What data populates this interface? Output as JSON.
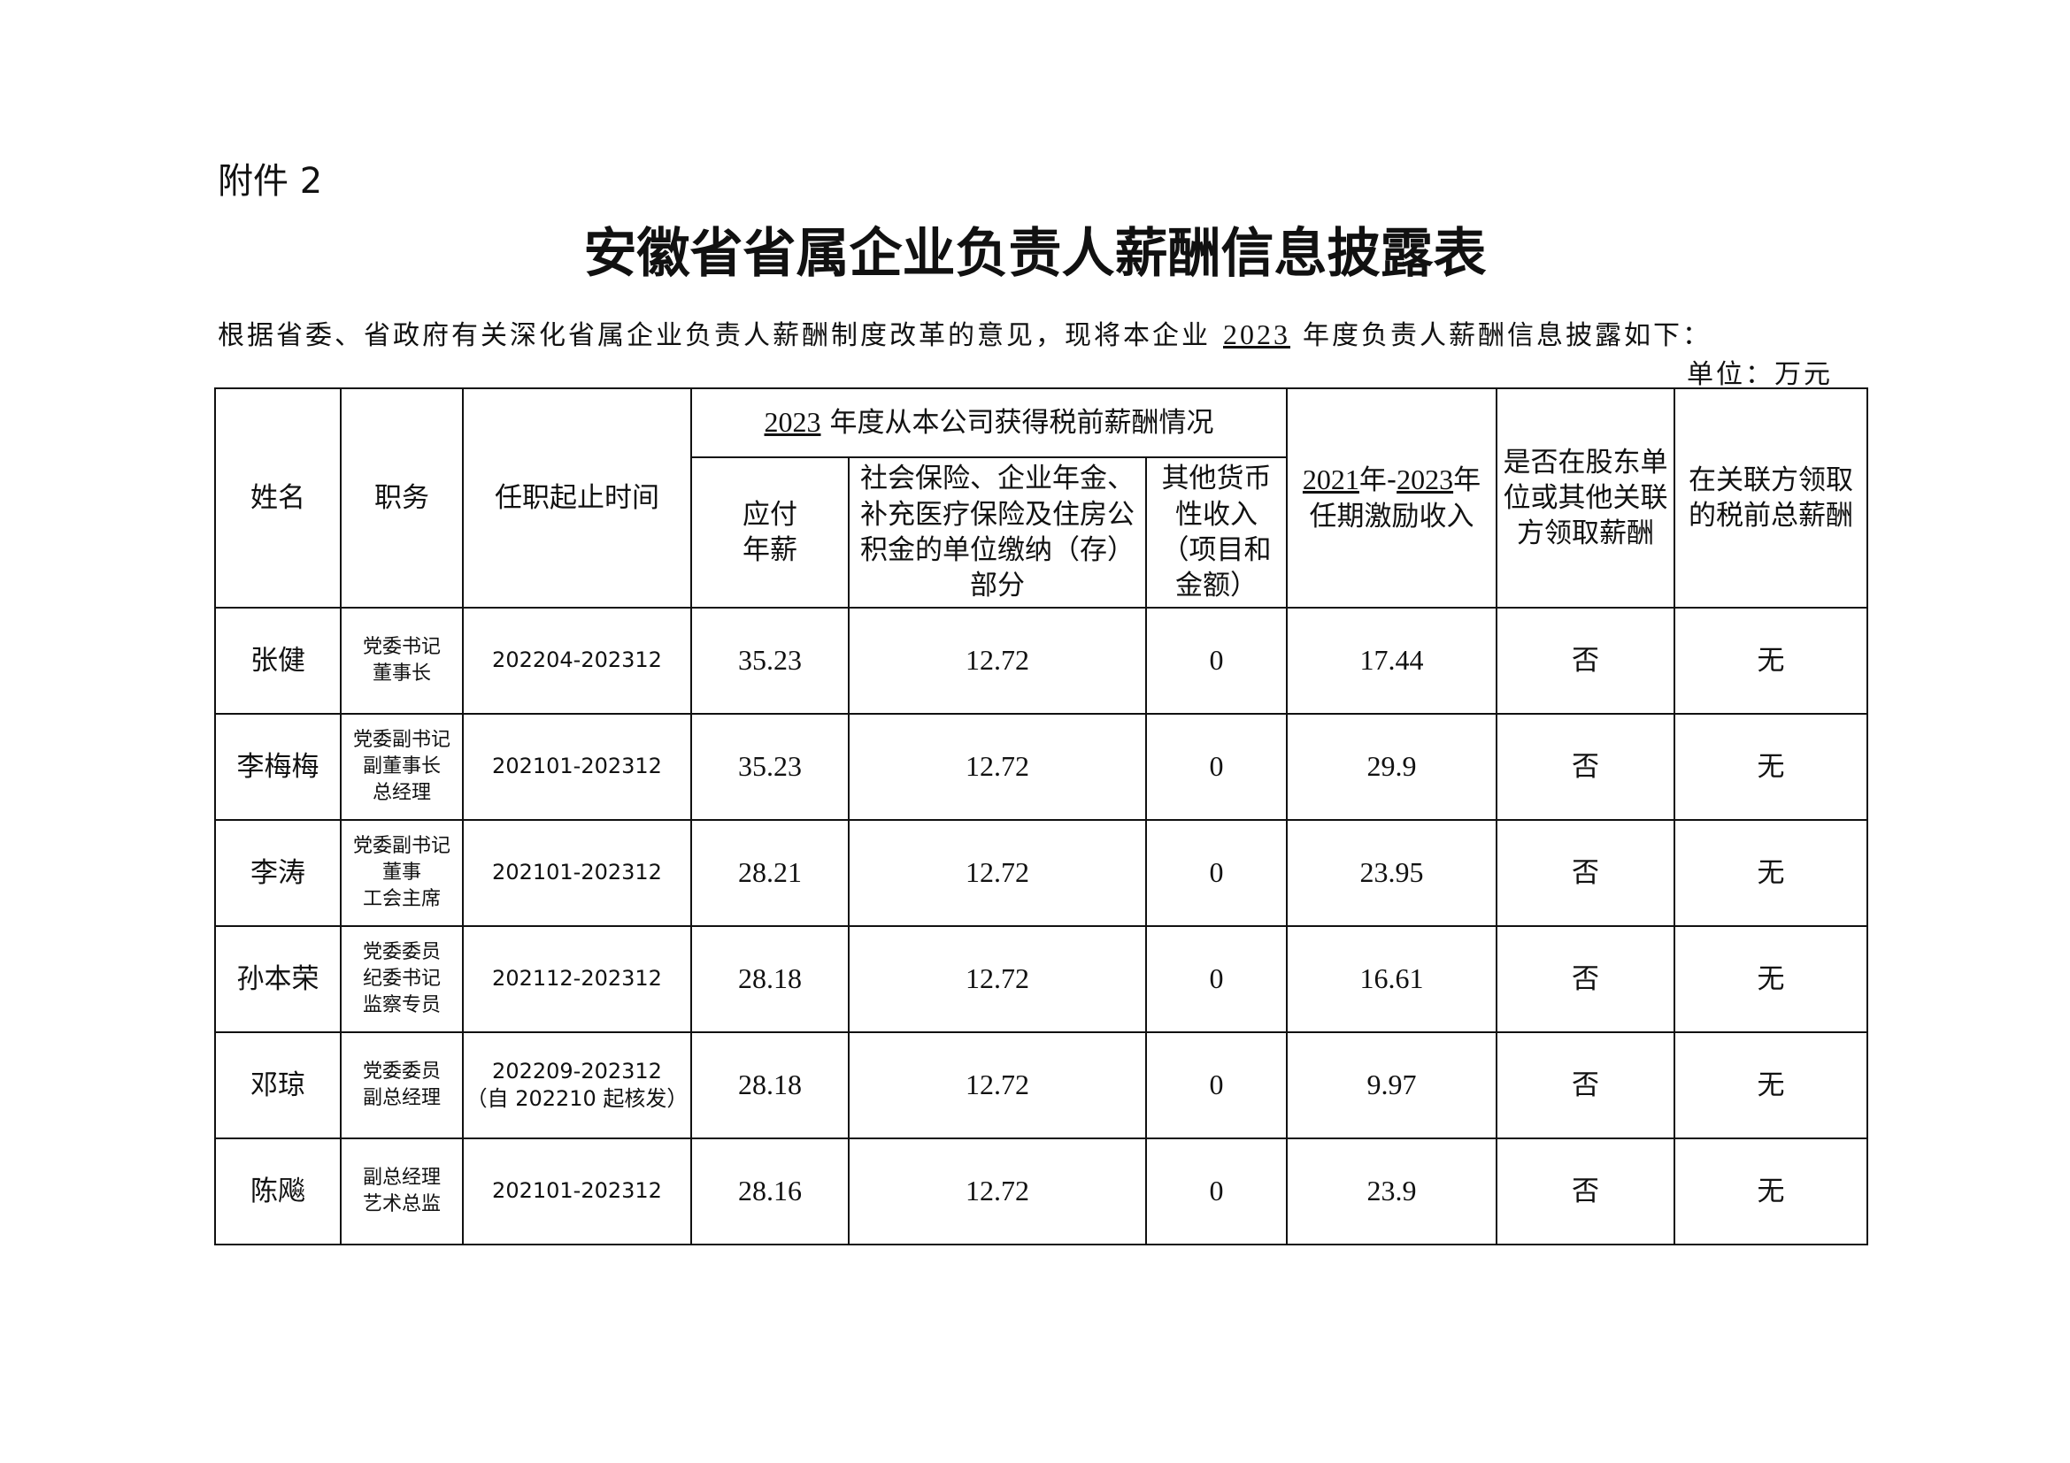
{
  "attachment": "附件 2",
  "title": "安徽省省属企业负责人薪酬信息披露表",
  "intro": {
    "before": "根据省委、省政府有关深化省属企业负责人薪酬制度改革的意见，现将本企业",
    "year": "2023",
    "after": "年度负责人薪酬信息披露如下："
  },
  "unit": "单位：万元",
  "headers": {
    "name": "姓名",
    "position": "职务",
    "term": "任职起止时间",
    "group_year": "2023",
    "group_text": "年度从本公司获得税前薪酬情况",
    "salary": "应付年薪",
    "insurance": "社会保险、企业年金、补充医疗保险及住房公积金的单位缴纳（存）部分",
    "other": "其他货币性收入（项目和金额）",
    "incentive_y1": "2021",
    "incentive_y2": "2023",
    "incentive_text": "任期激励收入",
    "shareholder": "是否在股东单位或其他关联方领取薪酬",
    "related_total": "在关联方领取的税前总薪酬"
  },
  "rows": [
    {
      "name": "张健",
      "position": [
        "党委书记",
        "董事长"
      ],
      "term": "202204-202312",
      "term_note": "",
      "salary": "35.23",
      "insurance": "12.72",
      "other": "0",
      "incentive": "17.44",
      "shareholder": "否",
      "related": "无"
    },
    {
      "name": "李梅梅",
      "position": [
        "党委副书记",
        "副董事长",
        "总经理"
      ],
      "term": "202101-202312",
      "term_note": "",
      "salary": "35.23",
      "insurance": "12.72",
      "other": "0",
      "incentive": "29.9",
      "shareholder": "否",
      "related": "无"
    },
    {
      "name": "李涛",
      "position": [
        "党委副书记",
        "董事",
        "工会主席"
      ],
      "term": "202101-202312",
      "term_note": "",
      "salary": "28.21",
      "insurance": "12.72",
      "other": "0",
      "incentive": "23.95",
      "shareholder": "否",
      "related": "无"
    },
    {
      "name": "孙本荣",
      "position": [
        "党委委员",
        "纪委书记",
        "监察专员"
      ],
      "term": "202112-202312",
      "term_note": "",
      "salary": "28.18",
      "insurance": "12.72",
      "other": "0",
      "incentive": "16.61",
      "shareholder": "否",
      "related": "无"
    },
    {
      "name": "邓琼",
      "position": [
        "党委委员",
        "副总经理"
      ],
      "term": "202209-202312",
      "term_note": "（自 202210 起核发）",
      "salary": "28.18",
      "insurance": "12.72",
      "other": "0",
      "incentive": "9.97",
      "shareholder": "否",
      "related": "无"
    },
    {
      "name": "陈飚",
      "position": [
        "副总经理",
        "艺术总监"
      ],
      "term": "202101-202312",
      "term_note": "",
      "salary": "28.16",
      "insurance": "12.72",
      "other": "0",
      "incentive": "23.9",
      "shareholder": "否",
      "related": "无"
    }
  ]
}
